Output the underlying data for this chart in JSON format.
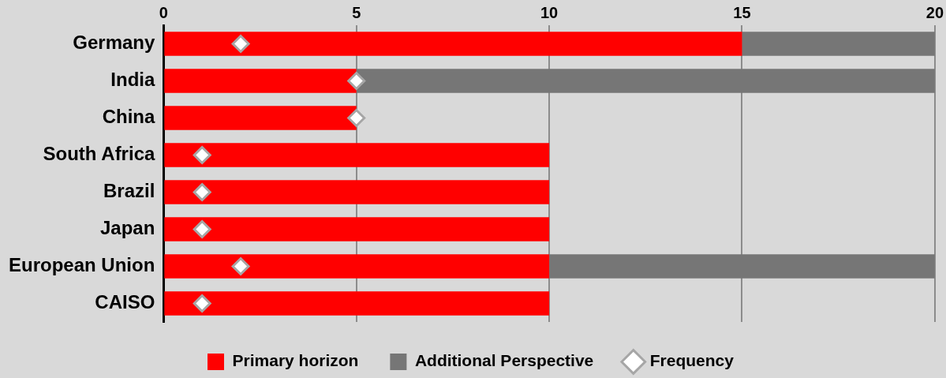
{
  "chart_data": {
    "type": "bar",
    "orientation": "horizontal",
    "stacked": true,
    "categories": [
      "Germany",
      "India",
      "China",
      "South Africa",
      "Brazil",
      "Japan",
      "European Union",
      "CAISO"
    ],
    "series": [
      {
        "name": "Primary horizon",
        "color": "#ff0000",
        "values": [
          15,
          5,
          5,
          10,
          10,
          10,
          10,
          10
        ]
      },
      {
        "name": "Additional Perspective",
        "color": "#767676",
        "values": [
          5,
          15,
          null,
          null,
          null,
          null,
          10,
          null
        ]
      },
      {
        "name": "Frequency",
        "type": "scatter",
        "marker": "diamond",
        "color": "#ffffff",
        "values": [
          2,
          5,
          5,
          1,
          1,
          1,
          2,
          1
        ]
      }
    ],
    "xlim": [
      0,
      20
    ],
    "xticks": [
      0,
      5,
      10,
      15,
      20
    ],
    "grid": "x",
    "legend": "bottom"
  }
}
